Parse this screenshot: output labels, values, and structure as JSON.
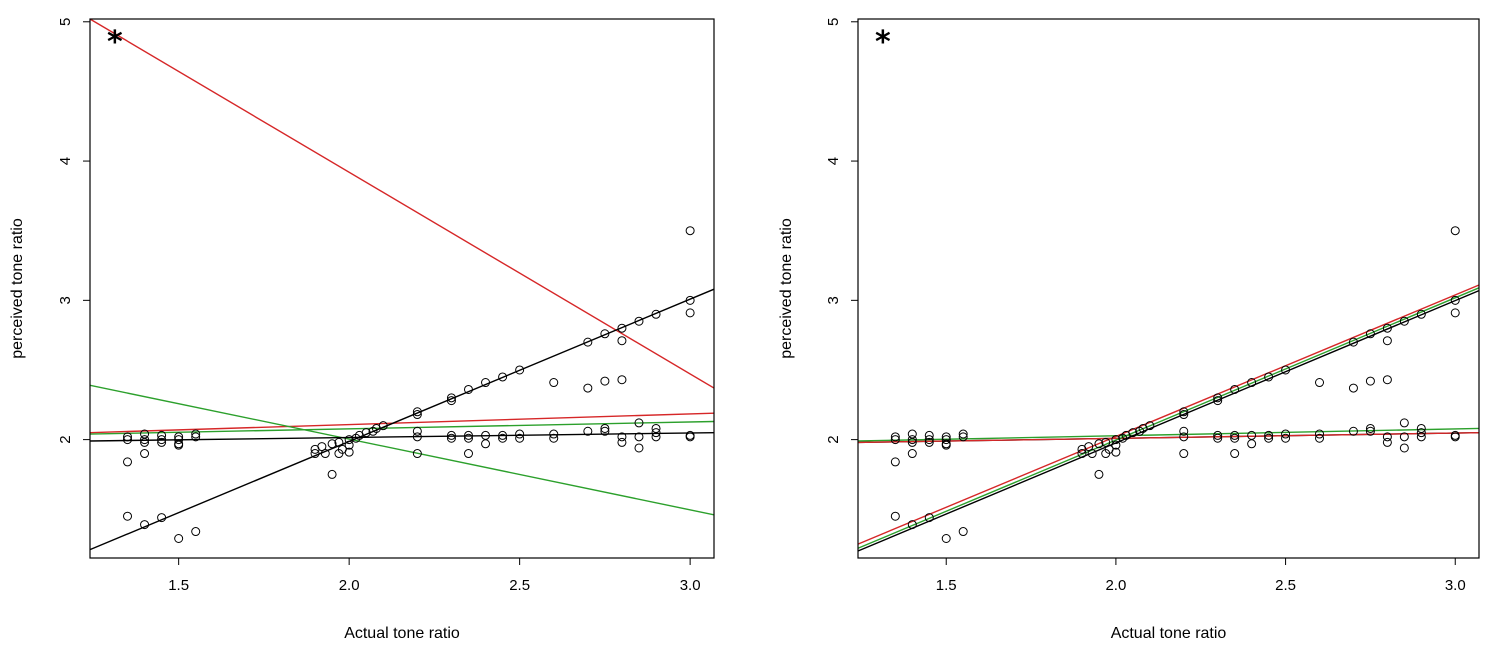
{
  "chart_data": [
    {
      "type": "scatter",
      "panel": "left",
      "annotation": "*",
      "xlabel": "Actual tone ratio",
      "ylabel": "perceived tone ratio",
      "xlim": [
        1.24,
        3.07
      ],
      "ylim": [
        1.15,
        5.02
      ],
      "xticks": [
        {
          "v": 1.5,
          "label": "1.5"
        },
        {
          "v": 2.0,
          "label": "2.0"
        },
        {
          "v": 2.5,
          "label": "2.5"
        },
        {
          "v": 3.0,
          "label": "3.0"
        }
      ],
      "yticks": [
        {
          "v": 2,
          "label": "2"
        },
        {
          "v": 3,
          "label": "3"
        },
        {
          "v": 4,
          "label": "4"
        },
        {
          "v": 5,
          "label": "5"
        }
      ],
      "grid": false,
      "points": [
        [
          1.35,
          2.02
        ],
        [
          1.35,
          2.0
        ],
        [
          1.35,
          1.84
        ],
        [
          1.35,
          1.45
        ],
        [
          1.4,
          2.04
        ],
        [
          1.4,
          2.0
        ],
        [
          1.4,
          1.98
        ],
        [
          1.4,
          1.9
        ],
        [
          1.4,
          1.39
        ],
        [
          1.45,
          2.03
        ],
        [
          1.45,
          2.0
        ],
        [
          1.45,
          1.98
        ],
        [
          1.45,
          1.44
        ],
        [
          1.5,
          2.02
        ],
        [
          1.5,
          2.0
        ],
        [
          1.5,
          1.97
        ],
        [
          1.5,
          1.96
        ],
        [
          1.5,
          1.29
        ],
        [
          1.55,
          2.04
        ],
        [
          1.55,
          2.02
        ],
        [
          1.55,
          1.34
        ],
        [
          1.9,
          1.9
        ],
        [
          1.9,
          1.93
        ],
        [
          1.92,
          1.95
        ],
        [
          1.93,
          1.9
        ],
        [
          1.95,
          1.97
        ],
        [
          1.95,
          1.75
        ],
        [
          1.97,
          1.98
        ],
        [
          1.97,
          1.9
        ],
        [
          1.98,
          1.93
        ],
        [
          2.0,
          2.0
        ],
        [
          2.0,
          1.96
        ],
        [
          2.0,
          1.91
        ],
        [
          2.02,
          2.01
        ],
        [
          2.03,
          2.03
        ],
        [
          2.05,
          2.05
        ],
        [
          2.07,
          2.06
        ],
        [
          2.08,
          2.08
        ],
        [
          2.1,
          2.1
        ],
        [
          2.2,
          2.2
        ],
        [
          2.2,
          2.18
        ],
        [
          2.2,
          2.06
        ],
        [
          2.2,
          2.02
        ],
        [
          2.2,
          1.9
        ],
        [
          2.3,
          2.3
        ],
        [
          2.3,
          2.28
        ],
        [
          2.3,
          2.03
        ],
        [
          2.3,
          2.01
        ],
        [
          2.35,
          2.36
        ],
        [
          2.35,
          2.03
        ],
        [
          2.35,
          2.01
        ],
        [
          2.35,
          1.9
        ],
        [
          2.4,
          2.41
        ],
        [
          2.4,
          2.03
        ],
        [
          2.4,
          1.97
        ],
        [
          2.45,
          2.45
        ],
        [
          2.45,
          2.03
        ],
        [
          2.45,
          2.01
        ],
        [
          2.5,
          2.5
        ],
        [
          2.5,
          2.04
        ],
        [
          2.5,
          2.01
        ],
        [
          2.6,
          2.41
        ],
        [
          2.6,
          2.04
        ],
        [
          2.6,
          2.01
        ],
        [
          2.7,
          2.7
        ],
        [
          2.7,
          2.37
        ],
        [
          2.7,
          2.06
        ],
        [
          2.75,
          2.76
        ],
        [
          2.75,
          2.42
        ],
        [
          2.75,
          2.08
        ],
        [
          2.75,
          2.06
        ],
        [
          2.8,
          2.8
        ],
        [
          2.8,
          2.71
        ],
        [
          2.8,
          2.43
        ],
        [
          2.8,
          2.02
        ],
        [
          2.8,
          1.98
        ],
        [
          2.85,
          2.85
        ],
        [
          2.85,
          2.12
        ],
        [
          2.85,
          2.02
        ],
        [
          2.85,
          1.94
        ],
        [
          2.9,
          2.9
        ],
        [
          2.9,
          2.08
        ],
        [
          2.9,
          2.05
        ],
        [
          2.9,
          2.02
        ],
        [
          3.0,
          3.5
        ],
        [
          3.0,
          3.0
        ],
        [
          3.0,
          2.91
        ],
        [
          3.0,
          2.03
        ],
        [
          3.0,
          2.02
        ]
      ],
      "lines": [
        {
          "color": "#d62728",
          "x": [
            1.24,
            3.07
          ],
          "y": [
            5.02,
            2.37
          ]
        },
        {
          "color": "#d62728",
          "x": [
            1.24,
            3.07
          ],
          "y": [
            2.05,
            2.19
          ]
        },
        {
          "color": "#2ca02c",
          "x": [
            1.24,
            3.07
          ],
          "y": [
            2.39,
            1.46
          ]
        },
        {
          "color": "#2ca02c",
          "x": [
            1.24,
            3.07
          ],
          "y": [
            2.04,
            2.13
          ]
        },
        {
          "color": "#000000",
          "x": [
            1.24,
            3.07
          ],
          "y": [
            1.99,
            2.05
          ]
        },
        {
          "color": "#000000",
          "x": [
            1.24,
            3.07
          ],
          "y": [
            1.21,
            3.08
          ]
        }
      ]
    },
    {
      "type": "scatter",
      "panel": "right",
      "annotation": "*",
      "xlabel": "Actual tone ratio",
      "ylabel": "perceived tone ratio",
      "xlim": [
        1.24,
        3.07
      ],
      "ylim": [
        1.15,
        5.02
      ],
      "xticks": [
        {
          "v": 1.5,
          "label": "1.5"
        },
        {
          "v": 2.0,
          "label": "2.0"
        },
        {
          "v": 2.5,
          "label": "2.5"
        },
        {
          "v": 3.0,
          "label": "3.0"
        }
      ],
      "yticks": [
        {
          "v": 2,
          "label": "2"
        },
        {
          "v": 3,
          "label": "3"
        },
        {
          "v": 4,
          "label": "4"
        },
        {
          "v": 5,
          "label": "5"
        }
      ],
      "grid": false,
      "points": [
        [
          1.35,
          2.02
        ],
        [
          1.35,
          2.0
        ],
        [
          1.35,
          1.84
        ],
        [
          1.35,
          1.45
        ],
        [
          1.4,
          2.04
        ],
        [
          1.4,
          2.0
        ],
        [
          1.4,
          1.98
        ],
        [
          1.4,
          1.9
        ],
        [
          1.4,
          1.39
        ],
        [
          1.45,
          2.03
        ],
        [
          1.45,
          2.0
        ],
        [
          1.45,
          1.98
        ],
        [
          1.45,
          1.44
        ],
        [
          1.5,
          2.02
        ],
        [
          1.5,
          2.0
        ],
        [
          1.5,
          1.97
        ],
        [
          1.5,
          1.96
        ],
        [
          1.5,
          1.29
        ],
        [
          1.55,
          2.04
        ],
        [
          1.55,
          2.02
        ],
        [
          1.55,
          1.34
        ],
        [
          1.9,
          1.9
        ],
        [
          1.9,
          1.93
        ],
        [
          1.92,
          1.95
        ],
        [
          1.93,
          1.9
        ],
        [
          1.95,
          1.97
        ],
        [
          1.95,
          1.75
        ],
        [
          1.97,
          1.98
        ],
        [
          1.97,
          1.9
        ],
        [
          1.98,
          1.93
        ],
        [
          2.0,
          2.0
        ],
        [
          2.0,
          1.96
        ],
        [
          2.0,
          1.91
        ],
        [
          2.02,
          2.01
        ],
        [
          2.03,
          2.03
        ],
        [
          2.05,
          2.05
        ],
        [
          2.07,
          2.06
        ],
        [
          2.08,
          2.08
        ],
        [
          2.1,
          2.1
        ],
        [
          2.2,
          2.2
        ],
        [
          2.2,
          2.18
        ],
        [
          2.2,
          2.06
        ],
        [
          2.2,
          2.02
        ],
        [
          2.2,
          1.9
        ],
        [
          2.3,
          2.3
        ],
        [
          2.3,
          2.28
        ],
        [
          2.3,
          2.03
        ],
        [
          2.3,
          2.01
        ],
        [
          2.35,
          2.36
        ],
        [
          2.35,
          2.03
        ],
        [
          2.35,
          2.01
        ],
        [
          2.35,
          1.9
        ],
        [
          2.4,
          2.41
        ],
        [
          2.4,
          2.03
        ],
        [
          2.4,
          1.97
        ],
        [
          2.45,
          2.45
        ],
        [
          2.45,
          2.03
        ],
        [
          2.45,
          2.01
        ],
        [
          2.5,
          2.5
        ],
        [
          2.5,
          2.04
        ],
        [
          2.5,
          2.01
        ],
        [
          2.6,
          2.41
        ],
        [
          2.6,
          2.04
        ],
        [
          2.6,
          2.01
        ],
        [
          2.7,
          2.7
        ],
        [
          2.7,
          2.37
        ],
        [
          2.7,
          2.06
        ],
        [
          2.75,
          2.76
        ],
        [
          2.75,
          2.42
        ],
        [
          2.75,
          2.08
        ],
        [
          2.75,
          2.06
        ],
        [
          2.8,
          2.8
        ],
        [
          2.8,
          2.71
        ],
        [
          2.8,
          2.43
        ],
        [
          2.8,
          2.02
        ],
        [
          2.8,
          1.98
        ],
        [
          2.85,
          2.85
        ],
        [
          2.85,
          2.12
        ],
        [
          2.85,
          2.02
        ],
        [
          2.85,
          1.94
        ],
        [
          2.9,
          2.9
        ],
        [
          2.9,
          2.08
        ],
        [
          2.9,
          2.05
        ],
        [
          2.9,
          2.02
        ],
        [
          3.0,
          3.5
        ],
        [
          3.0,
          3.0
        ],
        [
          3.0,
          2.91
        ],
        [
          3.0,
          2.03
        ],
        [
          3.0,
          2.02
        ]
      ],
      "lines": [
        {
          "color": "#2ca02c",
          "x": [
            1.24,
            3.07
          ],
          "y": [
            1.99,
            2.08
          ]
        },
        {
          "color": "#000000",
          "x": [
            1.24,
            3.07
          ],
          "y": [
            1.98,
            2.05
          ]
        },
        {
          "color": "#d62728",
          "x": [
            1.24,
            3.07
          ],
          "y": [
            1.98,
            2.05
          ]
        },
        {
          "color": "#d62728",
          "x": [
            1.24,
            3.07
          ],
          "y": [
            1.25,
            3.11
          ]
        },
        {
          "color": "#000000",
          "x": [
            1.24,
            3.07
          ],
          "y": [
            1.2,
            3.07
          ]
        },
        {
          "color": "#2ca02c",
          "x": [
            1.24,
            3.07
          ],
          "y": [
            1.22,
            3.09
          ]
        }
      ]
    }
  ]
}
